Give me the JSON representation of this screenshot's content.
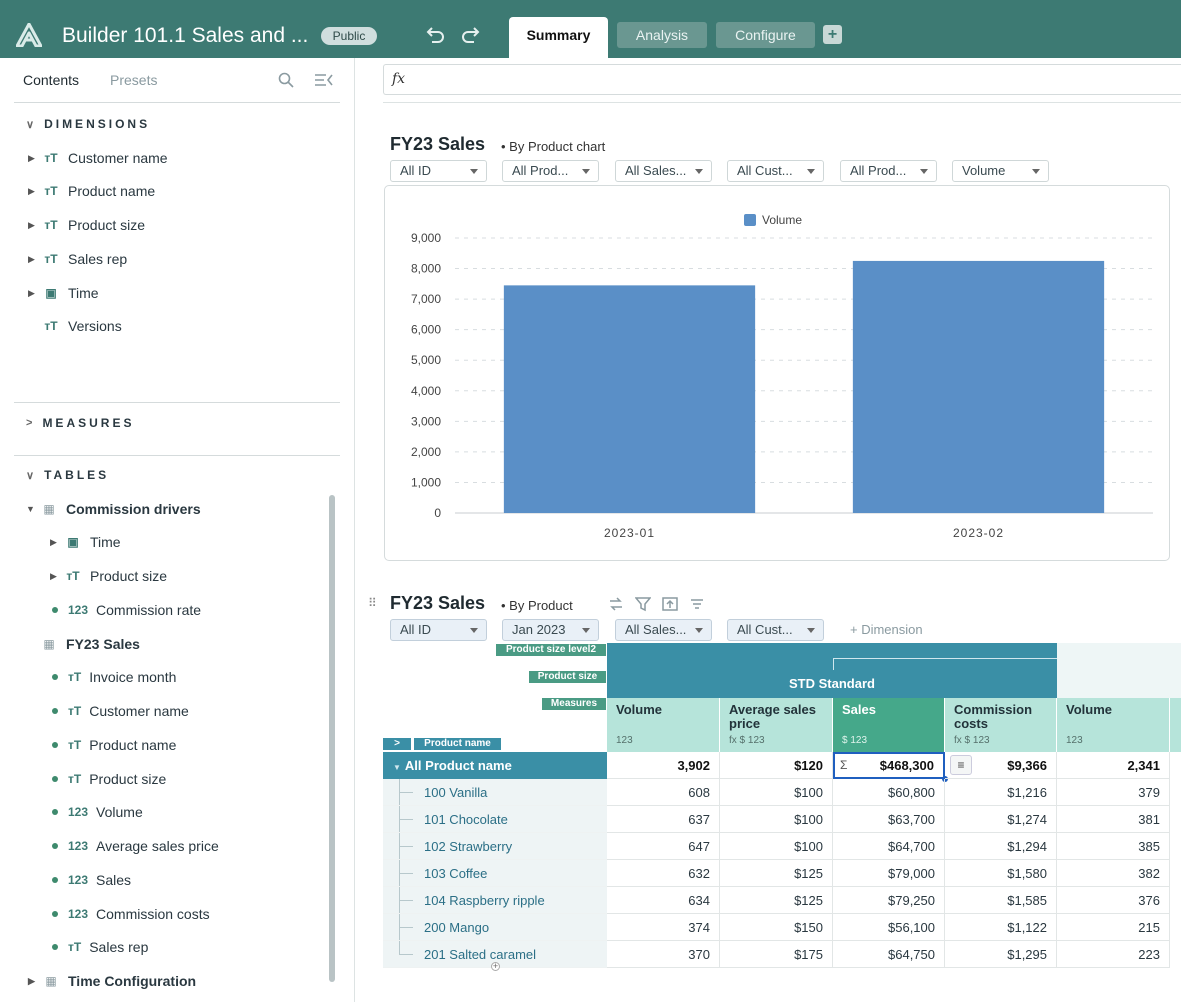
{
  "header": {
    "app_title": "Builder 101.1 Sales and ...",
    "badge": "Public",
    "tabs": [
      {
        "label": "Summary",
        "active": true
      },
      {
        "label": "Analysis",
        "active": false
      },
      {
        "label": "Configure",
        "active": false
      }
    ],
    "undo_icon": "undo-icon",
    "redo_icon": "redo-icon",
    "add_icon": "plus-icon"
  },
  "sidebar": {
    "tabs": [
      "Contents",
      "Presets"
    ],
    "dimensions_label": "DIMENSIONS",
    "dimensions": [
      {
        "label": "Customer name",
        "icon": "text-type-icon"
      },
      {
        "label": "Product name",
        "icon": "text-type-icon"
      },
      {
        "label": "Product size",
        "icon": "text-type-icon"
      },
      {
        "label": "Sales rep",
        "icon": "text-type-icon"
      },
      {
        "label": "Time",
        "icon": "calendar-icon"
      },
      {
        "label": "Versions",
        "icon": "text-type-icon"
      }
    ],
    "measures_label": "MEASURES",
    "tables_label": "TABLES",
    "tables": [
      {
        "label": "Commission drivers",
        "items": [
          "Time",
          "Product size",
          "Commission rate"
        ]
      },
      {
        "label": "FY23 Sales",
        "items": [
          "Invoice month",
          "Customer name",
          "Product name",
          "Product size",
          "Volume",
          "Average sales price",
          "Sales",
          "Commission costs",
          "Sales rep"
        ]
      },
      {
        "label": "Time Configuration",
        "items": []
      }
    ]
  },
  "formula_bar": {
    "label": "fx"
  },
  "chart_card": {
    "title": "FY23 Sales",
    "subtitle": "By Product chart",
    "filters": [
      "All ID",
      "All Prod...",
      "All Sales...",
      "All Cust...",
      "All Prod...",
      "Volume"
    ]
  },
  "chart_data": {
    "type": "bar",
    "categories": [
      "2023-01",
      "2023-02"
    ],
    "series": [
      {
        "name": "Volume",
        "values": [
          7450,
          8250
        ],
        "color": "#5a8fc7"
      }
    ],
    "ylim": [
      0,
      9000
    ],
    "yticks": [
      "0",
      "1,000",
      "2,000",
      "3,000",
      "4,000",
      "5,000",
      "6,000",
      "7,000",
      "8,000",
      "9,000"
    ],
    "legend": "top-center",
    "grid": true
  },
  "pivot": {
    "title": "FY23 Sales",
    "subtitle": "By Product",
    "filters": [
      "All ID",
      "Jan 2023",
      "All Sales...",
      "All Cust..."
    ],
    "add_dimension": "+ Dimension",
    "header_labels": [
      "Product size level2",
      "Product size",
      "Measures",
      "Product name"
    ],
    "group_header": "STD Standard",
    "columns": [
      {
        "label": "Volume",
        "sub": "123"
      },
      {
        "label": "Average sales price",
        "sub": "fx  $  123"
      },
      {
        "label": "Sales",
        "sub": "$  123"
      },
      {
        "label": "Commission costs",
        "sub": "fx  $  123"
      },
      {
        "label": "Volume",
        "sub": "123"
      }
    ],
    "total_row": {
      "label": "All Product name",
      "values": [
        "3,902",
        "$120",
        "$468,300",
        "$9,366",
        "2,341"
      ]
    },
    "rows": [
      {
        "label": "100 Vanilla",
        "values": [
          "608",
          "$100",
          "$60,800",
          "$1,216",
          "379"
        ]
      },
      {
        "label": "101 Chocolate",
        "values": [
          "637",
          "$100",
          "$63,700",
          "$1,274",
          "381"
        ]
      },
      {
        "label": "102 Strawberry",
        "values": [
          "647",
          "$100",
          "$64,700",
          "$1,294",
          "385"
        ]
      },
      {
        "label": "103 Coffee",
        "values": [
          "632",
          "$125",
          "$79,000",
          "$1,580",
          "382"
        ]
      },
      {
        "label": "104 Raspberry ripple",
        "values": [
          "634",
          "$125",
          "$79,250",
          "$1,585",
          "376"
        ]
      },
      {
        "label": "200 Mango",
        "values": [
          "374",
          "$150",
          "$56,100",
          "$1,122",
          "215"
        ]
      },
      {
        "label": "201 Salted caramel",
        "values": [
          "370",
          "$175",
          "$64,750",
          "$1,295",
          "223"
        ]
      }
    ]
  }
}
